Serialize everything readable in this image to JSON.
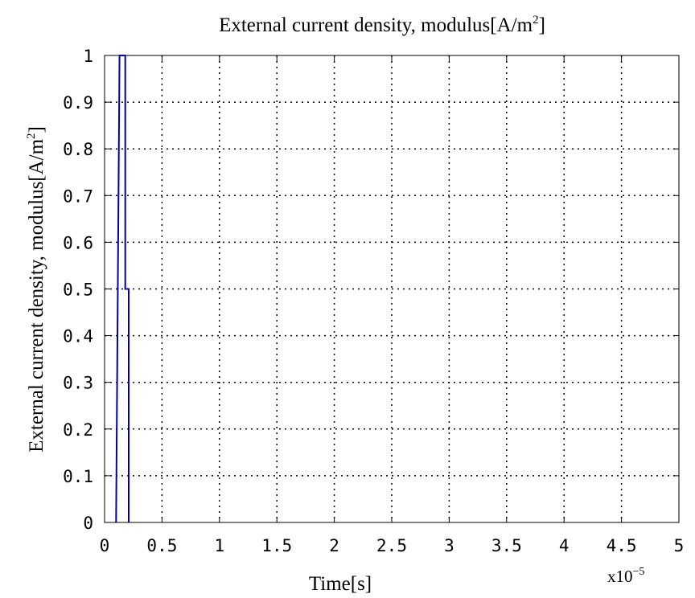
{
  "chart_data": {
    "type": "line",
    "title": "External current density, modulus[A/m",
    "title_sup": "2",
    "title_suffix": "]",
    "xlabel": "Time[s]",
    "ylabel": "External current density, modulus[A/m",
    "ylabel_sup": "2",
    "ylabel_suffix": "]",
    "x_multiplier": "x10",
    "x_multiplier_exp": "−5",
    "xlim": [
      0,
      5
    ],
    "ylim": [
      0,
      1
    ],
    "x_ticks": [
      0,
      0.5,
      1,
      1.5,
      2,
      2.5,
      3,
      3.5,
      4,
      4.5,
      5
    ],
    "x_tick_labels": [
      "0",
      "0.5",
      "1",
      "1.5",
      "2",
      "2.5",
      "3",
      "3.5",
      "4",
      "4.5",
      "5"
    ],
    "y_ticks": [
      0,
      0.1,
      0.2,
      0.3,
      0.4,
      0.5,
      0.6,
      0.7,
      0.8,
      0.9,
      1
    ],
    "y_tick_labels": [
      "0",
      "0.1",
      "0.2",
      "0.3",
      "0.4",
      "0.5",
      "0.6",
      "0.7",
      "0.8",
      "0.9",
      "1"
    ],
    "grid": true,
    "line_color": "#0000aa",
    "series": [
      {
        "x": [
          0.1,
          0.13,
          0.13,
          0.18,
          0.18,
          0.21,
          0.21
        ],
        "values": [
          0,
          1,
          1,
          1,
          0.5,
          0.5,
          0
        ]
      }
    ]
  }
}
